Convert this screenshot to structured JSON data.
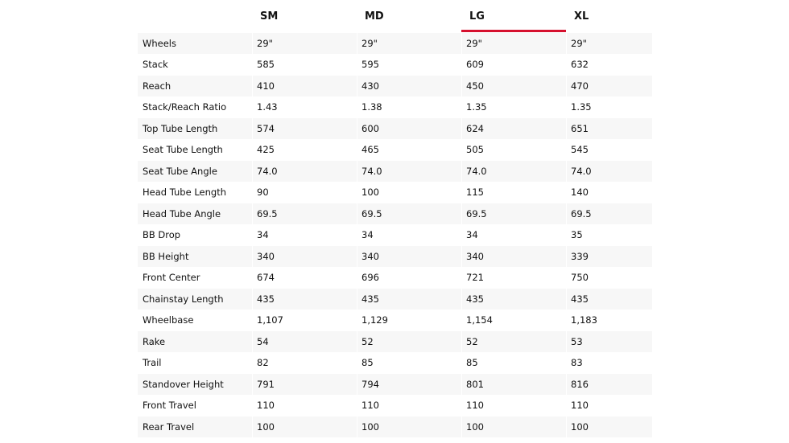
{
  "table": {
    "headers": [
      "SM",
      "MD",
      "LG",
      "XL"
    ],
    "rows": [
      [
        "Wheels",
        "29\"",
        "29\"",
        "29\"",
        "29\""
      ],
      [
        "Stack",
        "585",
        "595",
        "609",
        "632"
      ],
      [
        "Reach",
        "410",
        "430",
        "450",
        "470"
      ],
      [
        "Stack/Reach Ratio",
        "1.43",
        "1.38",
        "1.35",
        "1.35"
      ],
      [
        "Top Tube Length",
        "574",
        "600",
        "624",
        "651"
      ],
      [
        "Seat Tube Length",
        "425",
        "465",
        "505",
        "545"
      ],
      [
        "Seat Tube Angle",
        "74.0",
        "74.0",
        "74.0",
        "74.0"
      ],
      [
        "Head Tube Length",
        "90",
        "100",
        "115",
        "140"
      ],
      [
        "Head Tube Angle",
        "69.5",
        "69.5",
        "69.5",
        "69.5"
      ],
      [
        "BB Drop",
        "34",
        "34",
        "34",
        "35"
      ],
      [
        "BB Height",
        "340",
        "340",
        "340",
        "339"
      ],
      [
        "Front Center",
        "674",
        "696",
        "721",
        "750"
      ],
      [
        "Chainstay Length",
        "435",
        "435",
        "435",
        "435"
      ],
      [
        "Wheelbase",
        "1,107",
        "1,129",
        "1,154",
        "1,183"
      ],
      [
        "Rake",
        "54",
        "52",
        "52",
        "53"
      ],
      [
        "Trail",
        "82",
        "85",
        "85",
        "83"
      ],
      [
        "Standover Height",
        "791",
        "794",
        "801",
        "816"
      ],
      [
        "Front Travel",
        "110",
        "110",
        "110",
        "110"
      ],
      [
        "Rear Travel",
        "100",
        "100",
        "100",
        "100"
      ]
    ]
  }
}
